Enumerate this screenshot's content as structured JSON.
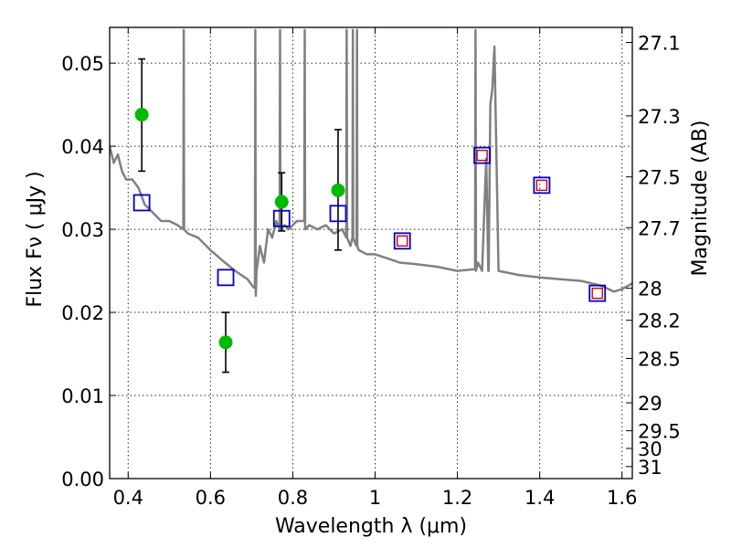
{
  "chart_data": {
    "type": "scatter",
    "title": "",
    "xlabel": "Wavelength  λ (μm)",
    "ylabel": "Flux  Fν  ( μJy )",
    "ylabel_right": "Magnitude (AB)",
    "xlim": [
      0.355,
      1.625
    ],
    "ylim": [
      0.0,
      0.0543
    ],
    "grid": true,
    "x_ticks": [
      0.4,
      0.6,
      0.8,
      1.0,
      1.2,
      1.4,
      1.6
    ],
    "x_tick_labels": [
      "0.4",
      "0.6",
      "0.8",
      "1",
      "1.2",
      "1.4",
      "1.6"
    ],
    "y_ticks": [
      0.0,
      0.01,
      0.02,
      0.03,
      0.04,
      0.05
    ],
    "y_tick_labels": [
      "0.00",
      "0.01",
      "0.02",
      "0.03",
      "0.04",
      "0.05"
    ],
    "right_ticks": [
      {
        "label": "27.1",
        "mag": 27.1
      },
      {
        "label": "27.3",
        "mag": 27.3
      },
      {
        "label": "27.5",
        "mag": 27.5
      },
      {
        "label": "27.7",
        "mag": 27.7
      },
      {
        "label": "28",
        "mag": 28.0
      },
      {
        "label": "28.2",
        "mag": 28.2
      },
      {
        "label": "28.5",
        "mag": 28.5
      },
      {
        "label": "29",
        "mag": 29.0
      },
      {
        "label": "29.5",
        "mag": 29.5
      },
      {
        "label": "30",
        "mag": 30.0
      },
      {
        "label": "31",
        "mag": 31.0
      }
    ],
    "series": [
      {
        "kind": "model_spectrum",
        "color": "#808080",
        "x": [
          0.355,
          0.365,
          0.375,
          0.385,
          0.395,
          0.41,
          0.425,
          0.44,
          0.46,
          0.48,
          0.5,
          0.52,
          0.534,
          0.535,
          0.536,
          0.545,
          0.57,
          0.6,
          0.63,
          0.66,
          0.69,
          0.705,
          0.708,
          0.709,
          0.71,
          0.712,
          0.72,
          0.73,
          0.74,
          0.75,
          0.76,
          0.768,
          0.769,
          0.77,
          0.78,
          0.79,
          0.8,
          0.81,
          0.82,
          0.828,
          0.829,
          0.83,
          0.84,
          0.86,
          0.88,
          0.9,
          0.92,
          0.93,
          0.931,
          0.932,
          0.94,
          0.945,
          0.946,
          0.947,
          0.95,
          0.955,
          0.956,
          0.957,
          0.96,
          0.98,
          1.0,
          1.03,
          1.06,
          1.1,
          1.15,
          1.2,
          1.243,
          1.244,
          1.245,
          1.25,
          1.26,
          1.27,
          1.275,
          1.276,
          1.28,
          1.285,
          1.29,
          1.3,
          1.35,
          1.4,
          1.45,
          1.5,
          1.55,
          1.58,
          1.6,
          1.625
        ],
        "y": [
          0.04,
          0.038,
          0.039,
          0.037,
          0.036,
          0.036,
          0.035,
          0.033,
          0.032,
          0.031,
          0.031,
          0.0305,
          0.03,
          0.054,
          0.03,
          0.0295,
          0.029,
          0.0275,
          0.0262,
          0.025,
          0.024,
          0.023,
          0.023,
          0.054,
          0.022,
          0.025,
          0.028,
          0.026,
          0.03,
          0.029,
          0.031,
          0.03,
          0.054,
          0.03,
          0.0305,
          0.03,
          0.0305,
          0.031,
          0.031,
          0.031,
          0.054,
          0.03,
          0.0305,
          0.03,
          0.0305,
          0.0295,
          0.03,
          0.029,
          0.054,
          0.029,
          0.028,
          0.029,
          0.054,
          0.029,
          0.0285,
          0.028,
          0.054,
          0.028,
          0.0275,
          0.027,
          0.027,
          0.0265,
          0.026,
          0.0258,
          0.0255,
          0.025,
          0.0252,
          0.054,
          0.025,
          0.026,
          0.025,
          0.0385,
          0.025,
          0.025,
          0.045,
          0.047,
          0.052,
          0.025,
          0.0245,
          0.0242,
          0.024,
          0.0238,
          0.0232,
          0.0225,
          0.0228,
          0.0235
        ]
      },
      {
        "kind": "model_photometry",
        "marker": "open-square",
        "color": "#0000cc",
        "x": [
          0.433,
          0.637,
          0.773,
          0.91,
          1.066,
          1.26,
          1.405,
          1.54
        ],
        "y": [
          0.0332,
          0.0242,
          0.0313,
          0.0319,
          0.0286,
          0.0389,
          0.0353,
          0.0223
        ]
      },
      {
        "kind": "observed_upper_limit",
        "marker": "small-open-square",
        "color": "#cc0000",
        "x": [
          1.066,
          1.26,
          1.405,
          1.54
        ],
        "y": [
          0.0286,
          0.0389,
          0.0353,
          0.0223
        ]
      },
      {
        "kind": "observed_detection",
        "marker": "filled-circle",
        "color": "#00bb00",
        "x": [
          0.433,
          0.637,
          0.773,
          0.91
        ],
        "y": [
          0.0438,
          0.0164,
          0.0333,
          0.0347
        ],
        "yerr_low": [
          0.037,
          0.0128,
          0.0298,
          0.0275
        ],
        "yerr_high": [
          0.0505,
          0.02,
          0.0368,
          0.042
        ]
      }
    ]
  }
}
